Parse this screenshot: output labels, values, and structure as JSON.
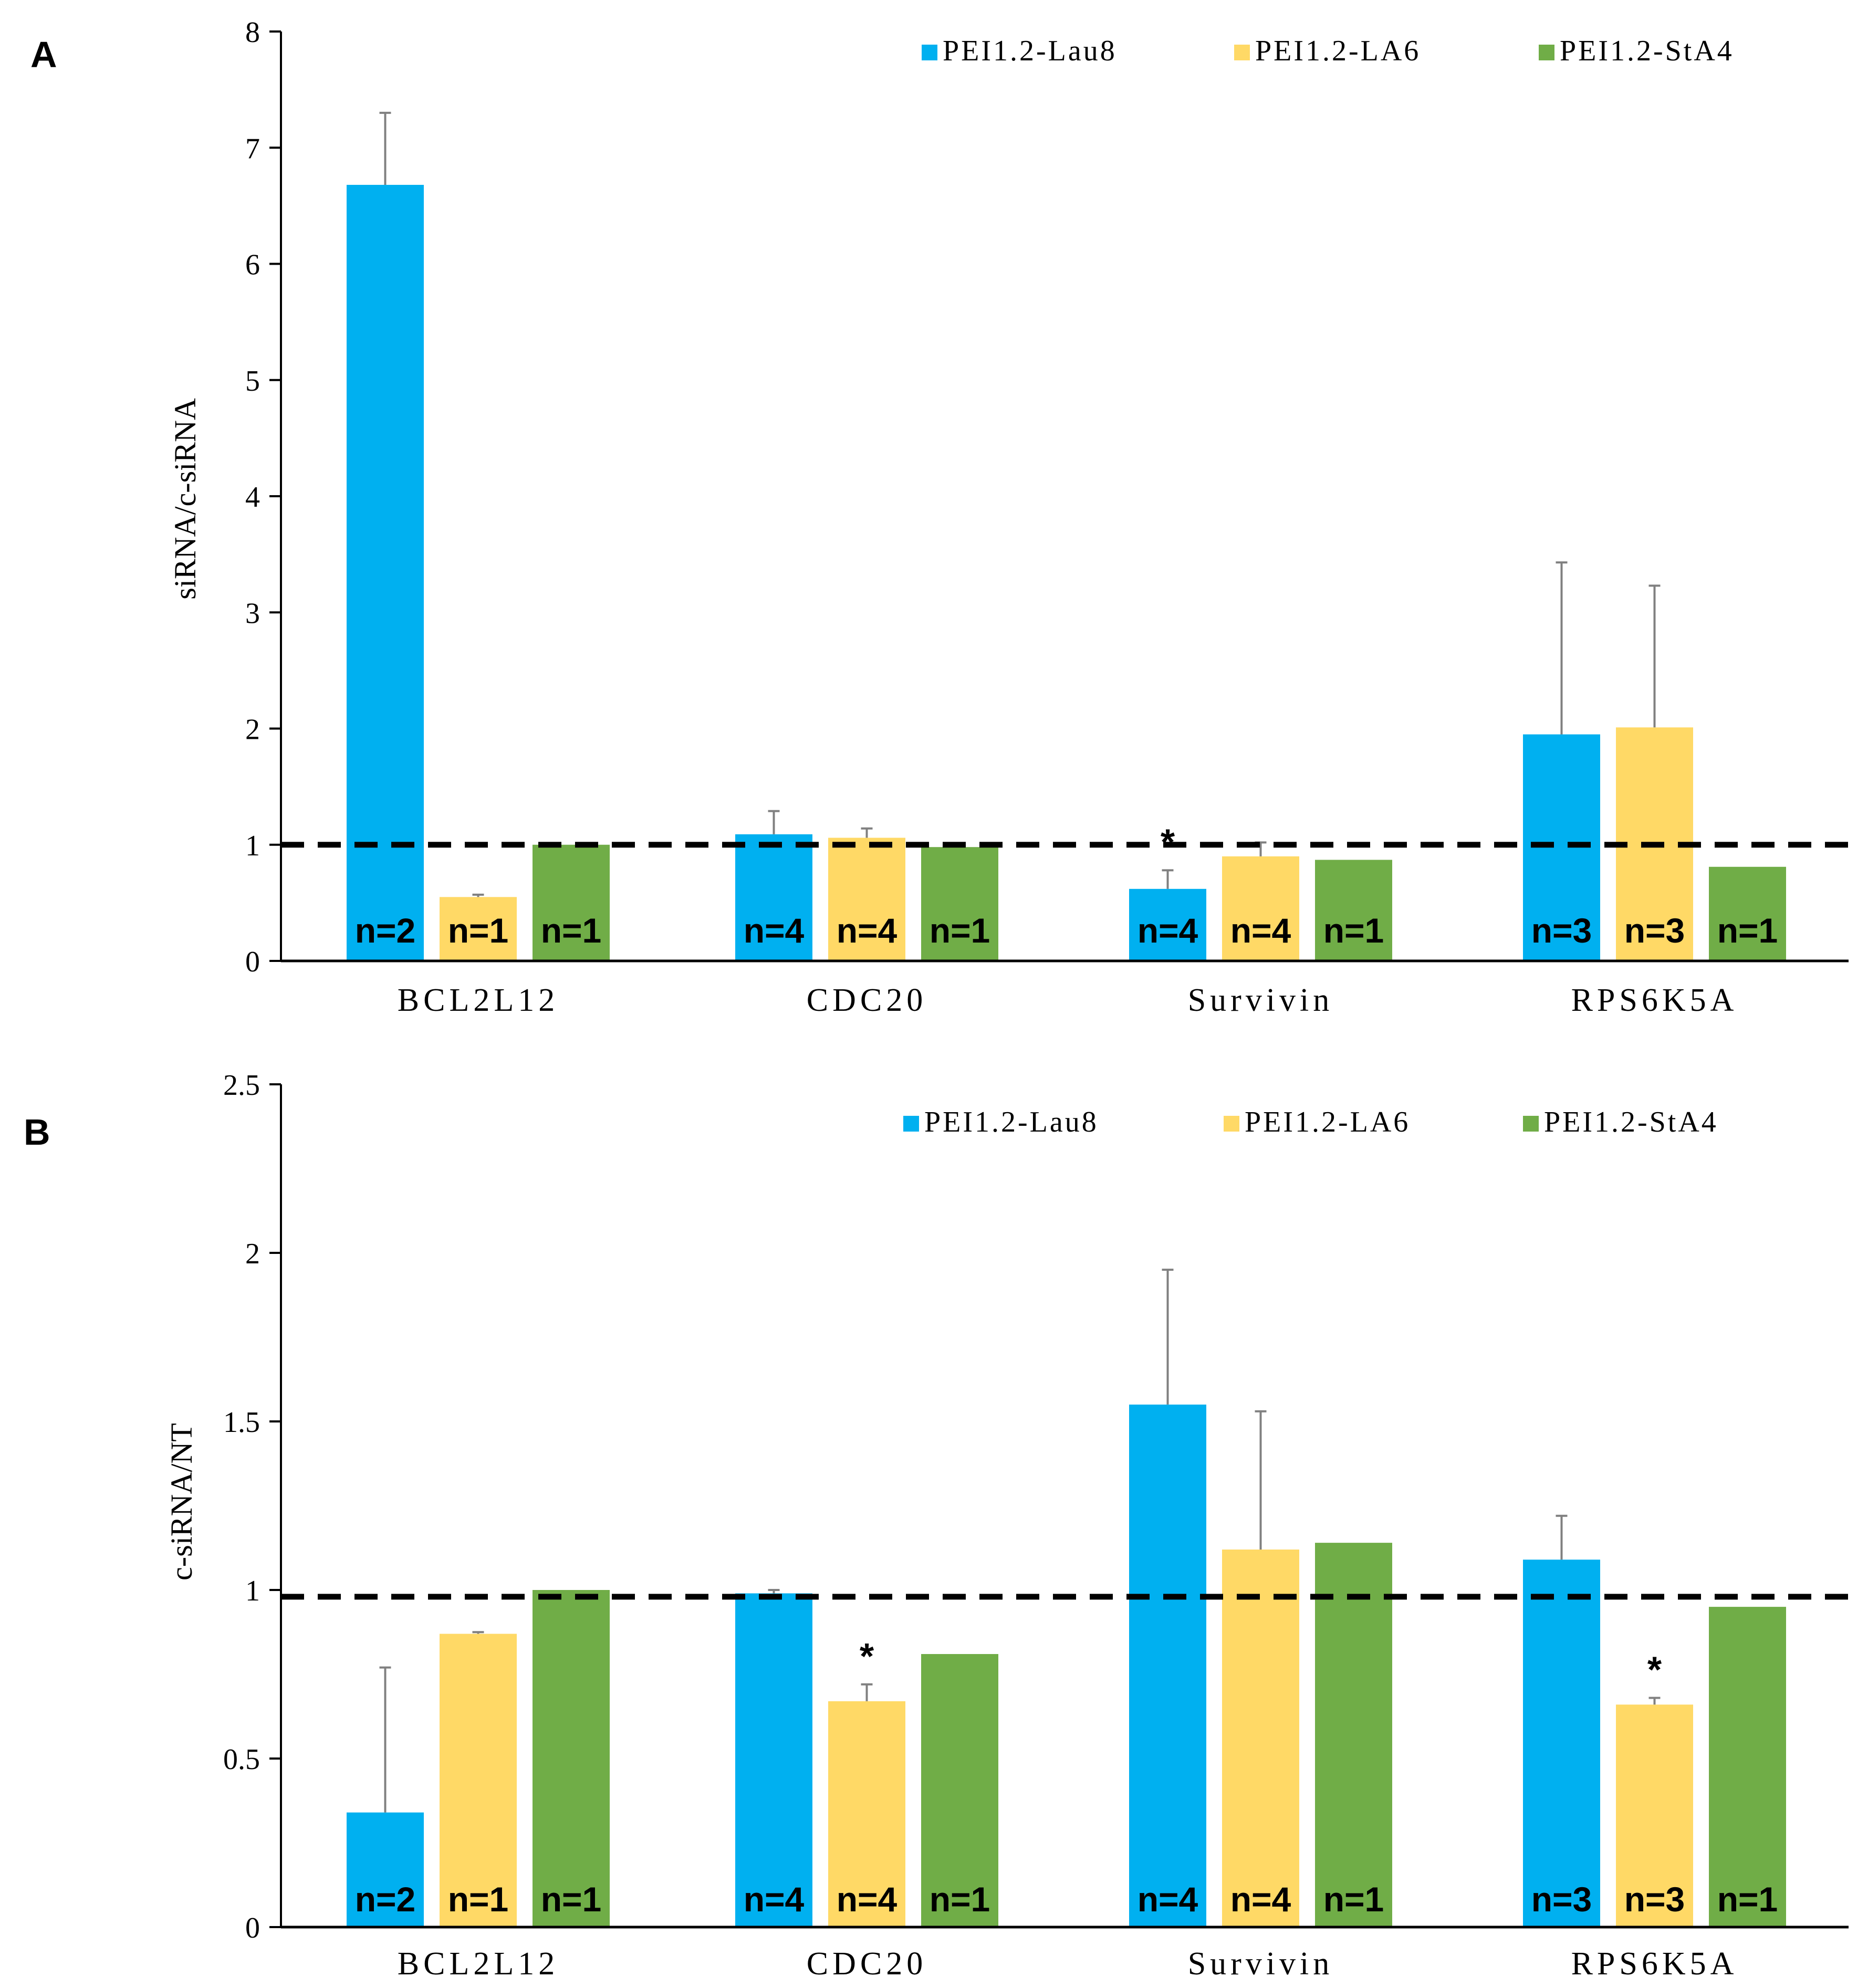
{
  "colors": {
    "PEI1.2-Lau8": "#00b0f0",
    "PEI1.2-LA6": "#ffd966",
    "PEI1.2-StA4": "#70ad47",
    "axis": "#000000",
    "errorbar": "#808080",
    "reference": "#000000"
  },
  "chart_data": [
    {
      "panel_label": "A",
      "type": "bar",
      "ylabel": "siRNA/c-siRNA",
      "xlabel": "",
      "ylim": [
        0,
        8
      ],
      "yticks": [
        "0",
        "1",
        "2",
        "3",
        "4",
        "5",
        "6",
        "7",
        "8"
      ],
      "ytick_values": [
        0,
        1,
        2,
        3,
        4,
        5,
        6,
        7,
        8
      ],
      "categories": [
        "BCL2L12",
        "CDC20",
        "Survivin",
        "RPS6K5A"
      ],
      "legend": [
        "PEI1.2-Lau8",
        "PEI1.2-LA6",
        "PEI1.2-StA4"
      ],
      "legend_position": "top-right",
      "reference_line": 1,
      "series": [
        {
          "name": "PEI1.2-Lau8",
          "values": [
            6.68,
            1.09,
            0.62,
            1.95
          ],
          "errors": [
            0.62,
            0.2,
            0.16,
            1.48
          ],
          "n_labels": [
            "n=2",
            "n=4",
            "n=4",
            "n=3"
          ]
        },
        {
          "name": "PEI1.2-LA6",
          "values": [
            0.55,
            1.06,
            0.9,
            2.01
          ],
          "errors": [
            0.02,
            0.08,
            0.12,
            1.22
          ],
          "n_labels": [
            "n=1",
            "n=4",
            "n=4",
            "n=3"
          ]
        },
        {
          "name": "PEI1.2-StA4",
          "values": [
            1.0,
            0.98,
            0.87,
            0.81
          ],
          "errors": [
            0,
            0,
            0,
            0
          ],
          "n_labels": [
            "n=1",
            "n=1",
            "n=1",
            "n=1"
          ]
        }
      ],
      "significance": [
        {
          "category": "Survivin",
          "series": "PEI1.2-Lau8",
          "mark": "*"
        }
      ]
    },
    {
      "panel_label": "B",
      "type": "bar",
      "ylabel": "c-siRNA/NT",
      "xlabel": "",
      "ylim": [
        0,
        2.5
      ],
      "yticks": [
        "0",
        "0.5",
        "1",
        "1.5",
        "2",
        "2.5"
      ],
      "ytick_values": [
        0,
        0.5,
        1,
        1.5,
        2,
        2.5
      ],
      "categories": [
        "BCL2L12",
        "CDC20",
        "Survivin",
        "RPS6K5A"
      ],
      "legend": [
        "PEI1.2-Lau8",
        "PEI1.2-LA6",
        "PEI1.2-StA4"
      ],
      "legend_position": "top-right",
      "reference_line": 0.98,
      "series": [
        {
          "name": "PEI1.2-Lau8",
          "values": [
            0.34,
            0.99,
            1.55,
            1.09
          ],
          "errors": [
            0.43,
            0.01,
            0.4,
            0.13
          ],
          "n_labels": [
            "n=2",
            "n=4",
            "n=4",
            "n=3"
          ]
        },
        {
          "name": "PEI1.2-LA6",
          "values": [
            0.87,
            0.67,
            1.12,
            0.66
          ],
          "errors": [
            0.005,
            0.05,
            0.41,
            0.02
          ],
          "n_labels": [
            "n=1",
            "n=4",
            "n=4",
            "n=3"
          ]
        },
        {
          "name": "PEI1.2-StA4",
          "values": [
            1.0,
            0.81,
            1.14,
            0.95
          ],
          "errors": [
            0,
            0,
            0,
            0
          ],
          "n_labels": [
            "n=1",
            "n=1",
            "n=1",
            "n=1"
          ]
        }
      ],
      "significance": [
        {
          "category": "CDC20",
          "series": "PEI1.2-LA6",
          "mark": "*"
        },
        {
          "category": "RPS6K5A",
          "series": "PEI1.2-LA6",
          "mark": "*"
        }
      ]
    }
  ]
}
